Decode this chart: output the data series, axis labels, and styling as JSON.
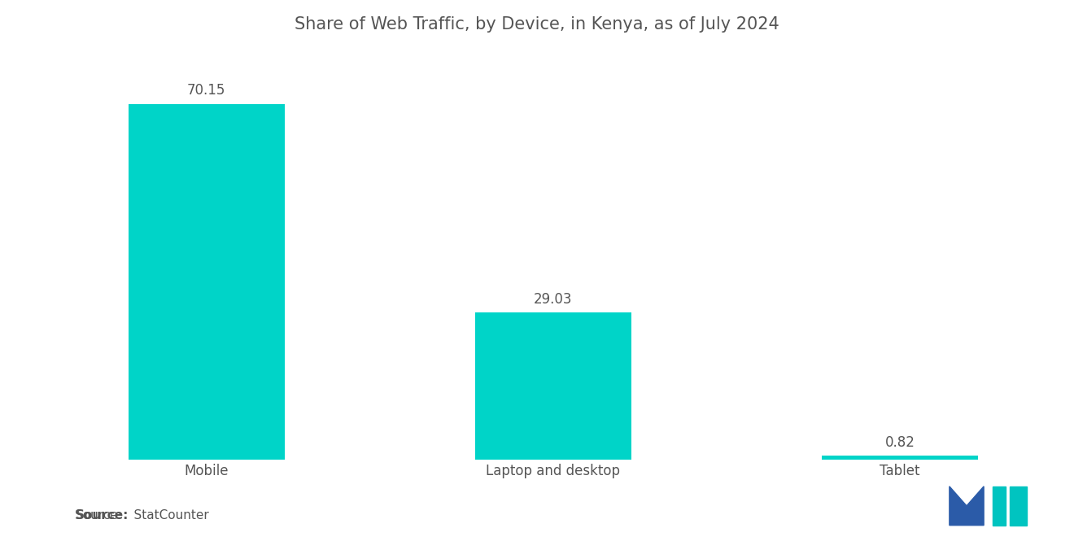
{
  "title": "Share of Web Traffic, by Device, in Kenya, as of July 2024",
  "categories": [
    "Mobile",
    "Laptop and desktop",
    "Tablet"
  ],
  "values": [
    70.15,
    29.03,
    0.82
  ],
  "bar_color": "#00D4C8",
  "background_color": "#ffffff",
  "title_color": "#555555",
  "label_color": "#555555",
  "value_color": "#555555",
  "source_text": "Source:   StatCounter",
  "ylim": [
    0,
    80
  ],
  "title_fontsize": 15,
  "label_fontsize": 12,
  "value_fontsize": 12,
  "source_fontsize": 11
}
